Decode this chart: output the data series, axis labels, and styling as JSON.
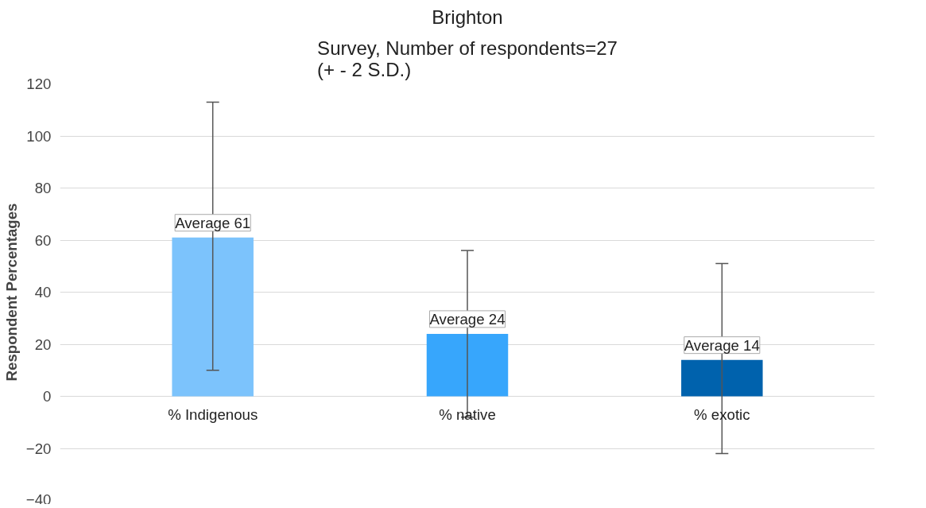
{
  "chart_data": {
    "type": "bar",
    "title": "Brighton",
    "subtitle": "Survey, Number of respondents=27\n(+ - 2 S.D.)",
    "ylabel": "Respondent Percentages",
    "categories": [
      "% Indigenous",
      "% native",
      "% exotic"
    ],
    "values": [
      61,
      24,
      14
    ],
    "colors": [
      "#7cc3fc",
      "#37a6fc",
      "#0062ad"
    ],
    "errors": [
      [
        10,
        113
      ],
      [
        -8,
        56
      ],
      [
        -22,
        51
      ]
    ],
    "value_labels": [
      "Average 61",
      "Average 24",
      "Average 14"
    ],
    "ylim": [
      -40,
      120
    ],
    "yticks": [
      -40,
      -20,
      0,
      20,
      40,
      60,
      80,
      100,
      120
    ],
    "grid": "y"
  }
}
